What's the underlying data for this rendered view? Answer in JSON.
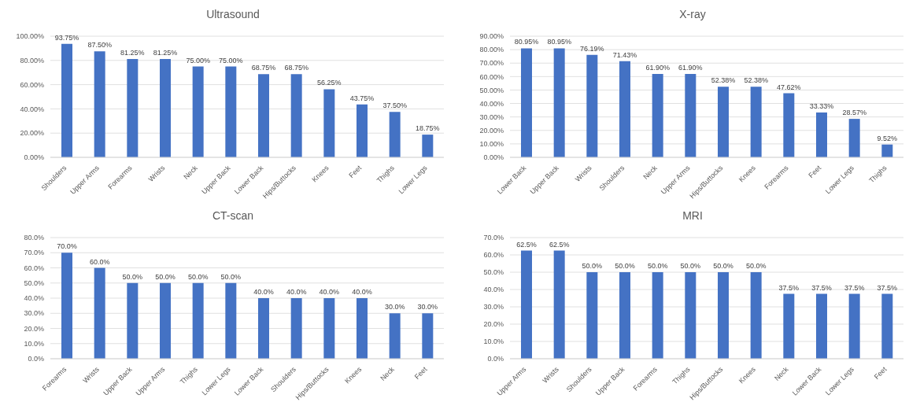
{
  "chart_data": [
    {
      "type": "bar",
      "title": "Ultrasound",
      "categories": [
        "Shoulders",
        "Upper Arms",
        "Forearms",
        "Wrists",
        "Neck",
        "Upper Back",
        "Lower Back",
        "Hips/Buttocks",
        "Knees",
        "Feet",
        "Thighs",
        "Lower Legs"
      ],
      "values": [
        93.75,
        87.5,
        81.25,
        81.25,
        75,
        75,
        68.75,
        68.75,
        56.25,
        43.75,
        37.5,
        18.75
      ],
      "value_labels": [
        "93.75%",
        "87.50%",
        "81.25%",
        "81.25%",
        "75.00%",
        "75.00%",
        "68.75%",
        "68.75%",
        "56.25%",
        "43.75%",
        "37.50%",
        "18.75%"
      ],
      "color": "#4472c4",
      "ylim": [
        0,
        100
      ],
      "yticks": [
        {
          "value": 0,
          "label": "0.00%"
        },
        {
          "value": 20,
          "label": "20.00%"
        },
        {
          "value": 40,
          "label": "40.00%"
        },
        {
          "value": 60,
          "label": "60.00%"
        },
        {
          "value": 80,
          "label": "80.00%"
        },
        {
          "value": 100,
          "label": "100.00%"
        }
      ],
      "grid": "y"
    },
    {
      "type": "bar",
      "title": "X-ray",
      "categories": [
        "Lower Back",
        "Upper Back",
        "Wrists",
        "Shoulders",
        "Neck",
        "Upper Arms",
        "Hips/Buttocks",
        "Knees",
        "Forearms",
        "Feet",
        "Lower Legs",
        "Thighs"
      ],
      "values": [
        80.95,
        80.95,
        76.19,
        71.43,
        61.9,
        61.9,
        52.38,
        52.38,
        47.62,
        33.33,
        28.57,
        9.52
      ],
      "value_labels": [
        "80.95%",
        "80.95%",
        "76.19%",
        "71.43%",
        "61.90%",
        "61.90%",
        "52.38%",
        "52.38%",
        "47.62%",
        "33.33%",
        "28.57%",
        "9.52%"
      ],
      "color": "#4472c4",
      "ylim": [
        0,
        90
      ],
      "yticks": [
        {
          "value": 0,
          "label": "0.00%"
        },
        {
          "value": 10,
          "label": "10.00%"
        },
        {
          "value": 20,
          "label": "20.00%"
        },
        {
          "value": 30,
          "label": "30.00%"
        },
        {
          "value": 40,
          "label": "40.00%"
        },
        {
          "value": 50,
          "label": "50.00%"
        },
        {
          "value": 60,
          "label": "60.00%"
        },
        {
          "value": 70,
          "label": "70.00%"
        },
        {
          "value": 80,
          "label": "80.00%"
        },
        {
          "value": 90,
          "label": "90.00%"
        }
      ],
      "grid": "y"
    },
    {
      "type": "bar",
      "title": "CT-scan",
      "categories": [
        "Forearms",
        "Wrists",
        "Upper Back",
        "Upper Arms",
        "Thighs",
        "Lower Legs",
        "Lower Back",
        "Shoulders",
        "Hips/Buttocks",
        "Knees",
        "Neck",
        "Feet"
      ],
      "values": [
        70,
        60,
        50,
        50,
        50,
        50,
        40,
        40,
        40,
        40,
        30,
        30
      ],
      "value_labels": [
        "70.0%",
        "60.0%",
        "50.0%",
        "50.0%",
        "50.0%",
        "50.0%",
        "40.0%",
        "40.0%",
        "40.0%",
        "40.0%",
        "30.0%",
        "30.0%"
      ],
      "color": "#4472c4",
      "ylim": [
        0,
        80
      ],
      "yticks": [
        {
          "value": 0,
          "label": "0.0%"
        },
        {
          "value": 10,
          "label": "10.0%"
        },
        {
          "value": 20,
          "label": "20.0%"
        },
        {
          "value": 30,
          "label": "30.0%"
        },
        {
          "value": 40,
          "label": "40.0%"
        },
        {
          "value": 50,
          "label": "50.0%"
        },
        {
          "value": 60,
          "label": "60.0%"
        },
        {
          "value": 70,
          "label": "70.0%"
        },
        {
          "value": 80,
          "label": "80.0%"
        }
      ],
      "grid": "y"
    },
    {
      "type": "bar",
      "title": "MRI",
      "categories": [
        "Upper Arms",
        "Wrists",
        "Shoulders",
        "Upper Back",
        "Forearms",
        "Thighs",
        "Hips/Buttocks",
        "Knees",
        "Neck",
        "Lower Back",
        "Lower Legs",
        "Feet"
      ],
      "values": [
        62.5,
        62.5,
        50,
        50,
        50,
        50,
        50,
        50,
        37.5,
        37.5,
        37.5,
        37.5
      ],
      "value_labels": [
        "62.5%",
        "62.5%",
        "50.0%",
        "50.0%",
        "50.0%",
        "50.0%",
        "50.0%",
        "50.0%",
        "37.5%",
        "37.5%",
        "37.5%",
        "37.5%"
      ],
      "color": "#4472c4",
      "ylim": [
        0,
        70
      ],
      "yticks": [
        {
          "value": 0,
          "label": "0.0%"
        },
        {
          "value": 10,
          "label": "10.0%"
        },
        {
          "value": 20,
          "label": "20.0%"
        },
        {
          "value": 30,
          "label": "30.0%"
        },
        {
          "value": 40,
          "label": "40.0%"
        },
        {
          "value": 50,
          "label": "50.0%"
        },
        {
          "value": 60,
          "label": "60.0%"
        },
        {
          "value": 70,
          "label": "70.0%"
        }
      ],
      "grid": "y"
    }
  ]
}
